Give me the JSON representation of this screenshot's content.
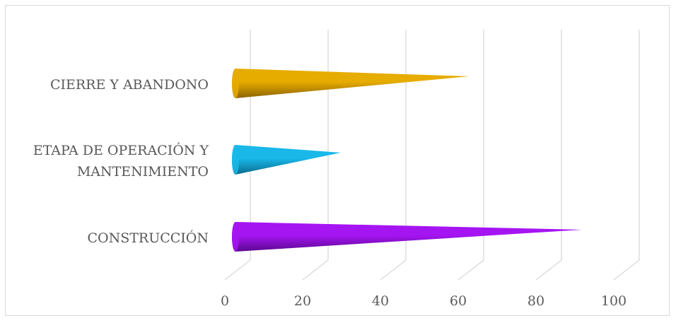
{
  "chart_data": {
    "type": "bar",
    "shape": "cone",
    "orientation": "horizontal",
    "categories": [
      [
        "CIERRE Y ABANDONO"
      ],
      [
        "ETAPA DE OPERACIÓN Y",
        "MANTENIMIENTO"
      ],
      [
        "CONSTRUCCIÓN"
      ]
    ],
    "values": [
      57,
      24,
      86
    ],
    "xlim": [
      0,
      100
    ],
    "xticks": [
      "0",
      "20",
      "40",
      "60",
      "80",
      "100"
    ],
    "grid": true,
    "legend": "none",
    "colors": {
      "bars": [
        "#e6ac00",
        "#19b8e8",
        "#a515f2"
      ],
      "bars_dark": [
        "#8a6200",
        "#0a6a8c",
        "#5a0890"
      ],
      "gridlines": "#d9d9d9",
      "text": "#595959"
    }
  }
}
